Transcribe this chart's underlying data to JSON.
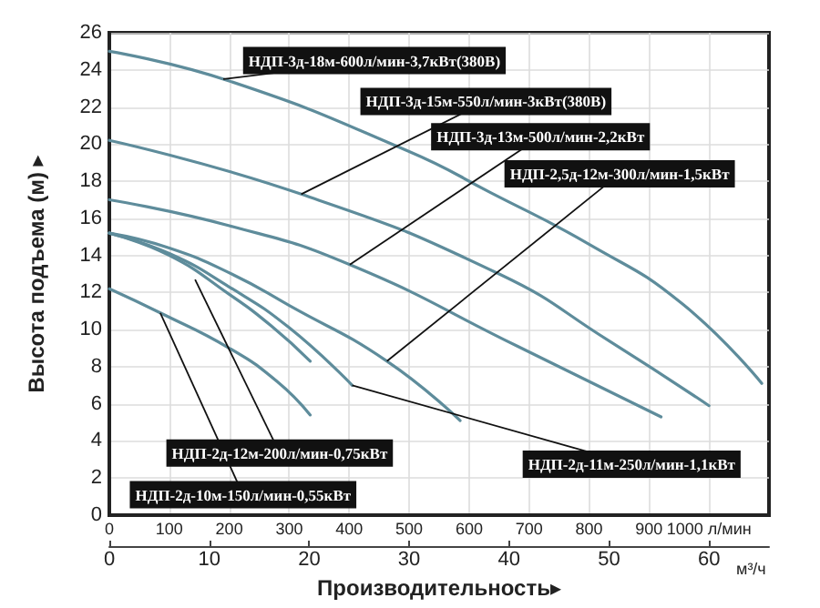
{
  "chart_data": {
    "type": "line",
    "xlabel": "Производительность▸",
    "ylabel": "Высота подъема (м) ▸",
    "x2label": "м³/ч",
    "xlim": [
      0,
      1100
    ],
    "xticks": [
      0,
      100,
      200,
      300,
      400,
      500,
      600,
      700,
      800,
      900,
      {
        "value": 1000,
        "label": "1000 л/мин"
      }
    ],
    "x2lim": [
      0,
      66
    ],
    "x2ticks": [
      0,
      10,
      20,
      30,
      40,
      50,
      60
    ],
    "ylim": [
      0,
      26
    ],
    "yticks": [
      0,
      2,
      4,
      6,
      8,
      10,
      12,
      14,
      16,
      18,
      20,
      22,
      24,
      26
    ],
    "grid": true,
    "legend": false,
    "marker": "none",
    "line_style": "solid",
    "series": [
      {
        "name": "НДП-3д-18м-600л/мин-3,7кВт(380В)",
        "color": "#5e8c9b",
        "x": [
          0,
          200,
          500,
          635,
          800,
          955,
          1088
        ],
        "values": [
          25,
          23.4,
          19.6,
          17.4,
          14.6,
          11.4,
          7.1
        ]
      },
      {
        "name": "НДП-3д-15м-550л/мин-3кВт(380В)",
        "color": "#5e8c9b",
        "x": [
          0,
          320,
          650,
          833,
          1000
        ],
        "values": [
          20.2,
          17.3,
          13.0,
          9.4,
          5.9
        ]
      },
      {
        "name": "НДП-3д-13м-500л/мин-2,2кВт",
        "color": "#5e8c9b",
        "x": [
          0,
          200,
          401,
          681,
          920
        ],
        "values": [
          17,
          15.6,
          13.5,
          9.1,
          5.3
        ]
      },
      {
        "name": "НДП-2,5д-12м-300л/мин-1,5кВт",
        "color": "#5e8c9b",
        "x": [
          0,
          100,
          204,
          300,
          463,
          585
        ],
        "values": [
          15.2,
          14.4,
          13.0,
          11.3,
          8.3,
          5.1
        ]
      },
      {
        "name": "НДП-2д-11м-250л/мин-1,1кВт",
        "color": "#5e8c9b",
        "x": [
          0,
          100,
          200,
          300,
          405
        ],
        "values": [
          15.2,
          14.1,
          12.3,
          10.1,
          7.0
        ]
      },
      {
        "name": "НДП-2д-12м-200л/мин-0,75кВт",
        "color": "#5e8c9b",
        "x": [
          0,
          100,
          200,
          270,
          335
        ],
        "values": [
          15.2,
          14.0,
          11.9,
          10.2,
          8.3
        ]
      },
      {
        "name": "НДП-2д-10м-150л/мин-0,55кВт",
        "color": "#5e8c9b",
        "x": [
          0,
          85,
          200,
          280,
          335
        ],
        "values": [
          12.2,
          10.9,
          9.0,
          7.2,
          5.4
        ]
      }
    ]
  }
}
